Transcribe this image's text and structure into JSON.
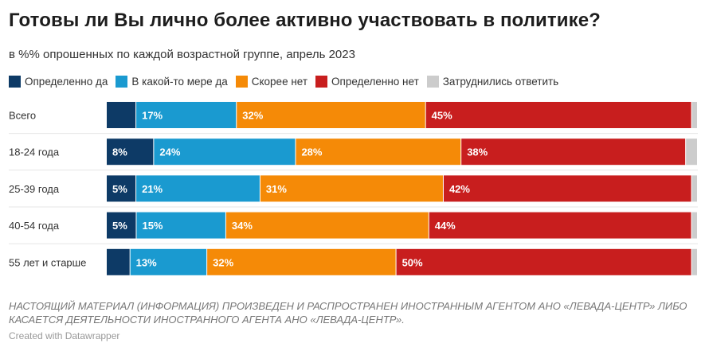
{
  "title": "Готовы ли Вы лично более активно участвовать в политике?",
  "subtitle": "в %% опрошенных по каждой возрастной группе, апрель 2023",
  "note": "НАСТОЯЩИЙ МАТЕРИАЛ (ИНФОРМАЦИЯ) ПРОИЗВЕДЕН И РАСПРОСТРАНЕН ИНОСТРАННЫМ АГЕНТОМ АНО «ЛЕВАДА-ЦЕНТР» ЛИБО КАСАЕТСЯ ДЕЯТЕЛЬНОСТИ ИНОСТРАННОГО АГЕНТА АНО «ЛЕВАДА-ЦЕНТР».",
  "credit": "Created with Datawrapper",
  "chart_data": {
    "type": "bar",
    "orientation": "horizontal",
    "stacked": true,
    "categories": [
      "Всего",
      "18-24 года",
      "25-39 года",
      "40-54 года",
      "55 лет и старше"
    ],
    "series": [
      {
        "name": "Определенно да",
        "color": "#0d3a66",
        "values": [
          5,
          8,
          5,
          5,
          4
        ],
        "labels": [
          "",
          "8%",
          "5%",
          "5%",
          ""
        ]
      },
      {
        "name": "В какой-то мере да",
        "color": "#1a9ad0",
        "values": [
          17,
          24,
          21,
          15,
          13
        ],
        "labels": [
          "17%",
          "24%",
          "21%",
          "15%",
          "13%"
        ]
      },
      {
        "name": "Скорее нет",
        "color": "#f58a07",
        "values": [
          32,
          28,
          31,
          34,
          32
        ],
        "labels": [
          "32%",
          "28%",
          "31%",
          "34%",
          "32%"
        ]
      },
      {
        "name": "Определенно нет",
        "color": "#c81e1e",
        "values": [
          45,
          38,
          42,
          44,
          50
        ],
        "labels": [
          "45%",
          "38%",
          "42%",
          "44%",
          "50%"
        ]
      },
      {
        "name": "Затруднились ответить",
        "color": "#cccccc",
        "values": [
          1,
          2,
          1,
          1,
          1
        ],
        "labels": [
          "",
          "",
          "",
          "",
          ""
        ]
      }
    ],
    "xlim": [
      0,
      100
    ],
    "legend": "top",
    "grid": false
  }
}
